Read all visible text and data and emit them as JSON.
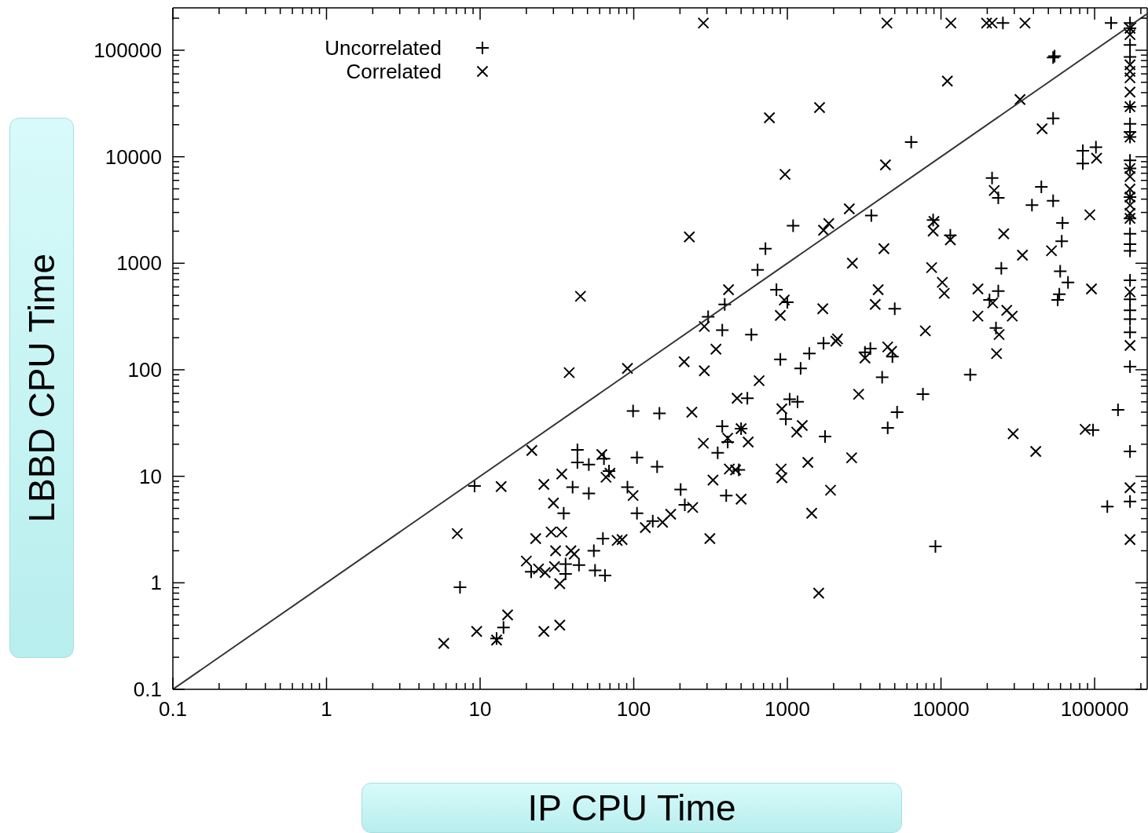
{
  "chart_data": {
    "type": "scatter",
    "xlabel": "IP CPU Time",
    "ylabel": "LBBD CPU Time",
    "log": "xy",
    "legend": "top left",
    "xlim": [
      0.1,
      220000
    ],
    "ylim": [
      0.1,
      250000
    ],
    "xticks": [
      0.1,
      {
        "value": 0.2,
        "label": null
      },
      {
        "value": 0.3,
        "label": null
      },
      {
        "value": 0.4,
        "label": null
      },
      {
        "value": 0.5,
        "label": null
      },
      {
        "value": 0.6,
        "label": null
      },
      {
        "value": 0.7,
        "label": null
      },
      {
        "value": 0.8,
        "label": null
      },
      {
        "value": 0.9,
        "label": null
      },
      1,
      {
        "value": 2,
        "label": null
      },
      {
        "value": 3,
        "label": null
      },
      {
        "value": 4,
        "label": null
      },
      {
        "value": 5,
        "label": null
      },
      {
        "value": 6,
        "label": null
      },
      {
        "value": 7,
        "label": null
      },
      {
        "value": 8,
        "label": null
      },
      {
        "value": 9,
        "label": null
      },
      10,
      {
        "value": 20,
        "label": null
      },
      {
        "value": 30,
        "label": null
      },
      {
        "value": 40,
        "label": null
      },
      {
        "value": 50,
        "label": null
      },
      {
        "value": 60,
        "label": null
      },
      {
        "value": 70,
        "label": null
      },
      {
        "value": 80,
        "label": null
      },
      {
        "value": 90,
        "label": null
      },
      100,
      {
        "value": 200,
        "label": null
      },
      {
        "value": 300,
        "label": null
      },
      {
        "value": 400,
        "label": null
      },
      {
        "value": 500,
        "label": null
      },
      {
        "value": 600,
        "label": null
      },
      {
        "value": 700,
        "label": null
      },
      {
        "value": 800,
        "label": null
      },
      {
        "value": 900,
        "label": null
      },
      1000,
      {
        "value": 2000,
        "label": null
      },
      {
        "value": 3000,
        "label": null
      },
      {
        "value": 4000,
        "label": null
      },
      {
        "value": 5000,
        "label": null
      },
      {
        "value": 6000,
        "label": null
      },
      {
        "value": 7000,
        "label": null
      },
      {
        "value": 8000,
        "label": null
      },
      {
        "value": 9000,
        "label": null
      },
      10000,
      {
        "value": 20000,
        "label": null
      },
      {
        "value": 30000,
        "label": null
      },
      {
        "value": 40000,
        "label": null
      },
      {
        "value": 50000,
        "label": null
      },
      {
        "value": 60000,
        "label": null
      },
      {
        "value": 70000,
        "label": null
      },
      {
        "value": 80000,
        "label": null
      },
      {
        "value": 90000,
        "label": null
      },
      100000,
      {
        "value": 200000,
        "label": null
      }
    ],
    "yticks": [
      0.1,
      {
        "value": 0.2,
        "label": null
      },
      {
        "value": 0.3,
        "label": null
      },
      {
        "value": 0.4,
        "label": null
      },
      {
        "value": 0.5,
        "label": null
      },
      {
        "value": 0.6,
        "label": null
      },
      {
        "value": 0.7,
        "label": null
      },
      {
        "value": 0.8,
        "label": null
      },
      {
        "value": 0.9,
        "label": null
      },
      1,
      {
        "value": 2,
        "label": null
      },
      {
        "value": 3,
        "label": null
      },
      {
        "value": 4,
        "label": null
      },
      {
        "value": 5,
        "label": null
      },
      {
        "value": 6,
        "label": null
      },
      {
        "value": 7,
        "label": null
      },
      {
        "value": 8,
        "label": null
      },
      {
        "value": 9,
        "label": null
      },
      10,
      {
        "value": 20,
        "label": null
      },
      {
        "value": 30,
        "label": null
      },
      {
        "value": 40,
        "label": null
      },
      {
        "value": 50,
        "label": null
      },
      {
        "value": 60,
        "label": null
      },
      {
        "value": 70,
        "label": null
      },
      {
        "value": 80,
        "label": null
      },
      {
        "value": 90,
        "label": null
      },
      100,
      {
        "value": 200,
        "label": null
      },
      {
        "value": 300,
        "label": null
      },
      {
        "value": 400,
        "label": null
      },
      {
        "value": 500,
        "label": null
      },
      {
        "value": 600,
        "label": null
      },
      {
        "value": 700,
        "label": null
      },
      {
        "value": 800,
        "label": null
      },
      {
        "value": 900,
        "label": null
      },
      1000,
      {
        "value": 2000,
        "label": null
      },
      {
        "value": 3000,
        "label": null
      },
      {
        "value": 4000,
        "label": null
      },
      {
        "value": 5000,
        "label": null
      },
      {
        "value": 6000,
        "label": null
      },
      {
        "value": 7000,
        "label": null
      },
      {
        "value": 8000,
        "label": null
      },
      {
        "value": 9000,
        "label": null
      },
      10000,
      {
        "value": 20000,
        "label": null
      },
      {
        "value": 30000,
        "label": null
      },
      {
        "value": 40000,
        "label": null
      },
      {
        "value": 50000,
        "label": null
      },
      {
        "value": 60000,
        "label": null
      },
      {
        "value": 70000,
        "label": null
      },
      {
        "value": 80000,
        "label": null
      },
      {
        "value": 90000,
        "label": null
      },
      100000,
      {
        "value": 200000,
        "label": null
      }
    ],
    "series": [
      {
        "name": "Uncorrelated",
        "marker": "plus",
        "color": "#000000",
        "x": [
          43,
          43,
          51,
          64,
          69,
          105,
          142,
          40,
          51,
          91,
          202,
          215,
          35,
          105,
          133,
          63,
          55,
          36,
          44,
          21.5,
          36,
          56,
          65,
          7.4,
          14.2,
          12.8,
          9.2,
          391,
          305,
          377,
          583,
          849,
          1000,
          1720,
          1390,
          900,
          1220,
          3470,
          3200,
          4830,
          5000,
          4140,
          7630,
          5180,
          4500,
          549,
          1035,
          1165,
          977,
          1760,
          377,
          409,
          352,
          483,
          400,
          9200,
          500,
          25300,
          54900,
          53700,
          53700,
          6400,
          83800,
          83800,
          21500,
          23600,
          45000,
          53700,
          39100,
          3520,
          1090,
          720,
          640,
          8890,
          11500,
          61800,
          61100,
          24700,
          59700,
          67100,
          23600,
          20700,
          58900,
          57500,
          22800,
          15500,
          142000,
          97700,
          121000,
          102000,
          128000,
          99,
          147,
          170000,
          170000,
          170000,
          170000,
          170000,
          170000,
          170000,
          170000,
          170000,
          170000,
          170000,
          170000,
          170000,
          170000,
          170000,
          170000,
          170000,
          170000,
          170000,
          170000,
          170000,
          170000,
          170000
        ],
        "values": [
          17.7,
          13.5,
          12.9,
          14.6,
          11.2,
          15,
          12.3,
          7.9,
          6.9,
          7.9,
          7.5,
          5.4,
          4.5,
          4.5,
          3.8,
          2.6,
          2,
          1.5,
          1.47,
          1.27,
          1.21,
          1.31,
          1.17,
          0.91,
          0.38,
          0.3,
          8.1,
          411,
          314,
          236,
          214,
          565,
          431,
          177,
          142,
          125,
          103,
          158,
          146,
          133,
          374,
          85,
          59,
          40,
          28.5,
          54,
          53,
          50,
          34.5,
          23.6,
          29.5,
          21,
          16.6,
          11.5,
          6.6,
          2.2,
          28,
          180000,
          88100,
          85300,
          22900,
          13700,
          11400,
          8660,
          6310,
          4110,
          5210,
          3860,
          3510,
          2810,
          2250,
          1370,
          867,
          2550,
          1830,
          2390,
          1610,
          895,
          840,
          662,
          547,
          452,
          513,
          452,
          247,
          90,
          42,
          27.2,
          5.2,
          12300,
          180000,
          41,
          39,
          180000,
          161000,
          112000,
          86700,
          29500,
          20400,
          17100,
          15300,
          9250,
          7760,
          4180,
          2640,
          1890,
          1510,
          1310,
          693,
          459,
          362,
          299,
          225,
          107,
          17.1,
          5.8
        ]
      },
      {
        "name": "Correlated",
        "marker": "cross",
        "color": "#000000",
        "x": [
          21.7,
          34,
          26,
          13.7,
          30,
          7.1,
          23,
          29,
          34,
          62,
          66,
          70,
          99,
          119,
          154,
          174,
          78,
          84,
          31,
          39,
          41,
          20,
          24,
          26.5,
          30.5,
          33,
          15.1,
          9.5,
          5.8,
          26,
          33,
          12.8,
          414,
          288,
          343,
          213,
          288,
          900,
          955,
          1700,
          3900,
          3730,
          7910,
          2120,
          2070,
          3200,
          4500,
          4770,
          655,
          471,
          239,
          2910,
          921,
          1250,
          1150,
          556,
          409,
          284,
          500,
          328,
          419,
          460,
          911,
          921,
          1360,
          2620,
          1910,
          500,
          242,
          1440,
          313,
          284,
          4450,
          11600,
          19800,
          21500,
          35200,
          764,
          1620,
          11000,
          32700,
          45500,
          966,
          4350,
          230,
          2530,
          1860,
          1720,
          9000,
          8890,
          11500,
          22200,
          25600,
          33900,
          52400,
          93100,
          4250,
          2650,
          8690,
          10200,
          103000,
          10500,
          17400,
          17400,
          21700,
          26800,
          29100,
          23900,
          23000,
          95400,
          29500,
          41400,
          86800,
          38,
          45,
          91,
          1600,
          170000,
          170000,
          170000,
          170000,
          170000,
          170000,
          170000,
          170000,
          170000,
          170000,
          170000,
          170000,
          170000,
          170000,
          170000,
          170000,
          170000,
          170000,
          170000
        ],
        "values": [
          17.5,
          10.5,
          8.4,
          8,
          5.6,
          2.9,
          2.6,
          3,
          3,
          16,
          9.8,
          10.7,
          6.6,
          3.3,
          3.7,
          4.4,
          2.5,
          2.55,
          2,
          2,
          1.86,
          1.6,
          1.35,
          1.25,
          1.42,
          0.98,
          0.5,
          0.35,
          0.27,
          0.35,
          0.4,
          0.29,
          565,
          255,
          156,
          119,
          98,
          324,
          452,
          374,
          565,
          411,
          232,
          195,
          186,
          129,
          164,
          149,
          79,
          54,
          40,
          59,
          43,
          30,
          26,
          21,
          22.8,
          20.4,
          28,
          9.2,
          11.7,
          11.5,
          11.7,
          9.7,
          13.5,
          14.9,
          7.4,
          6.1,
          5.1,
          4.5,
          2.6,
          180000,
          180000,
          180000,
          180000,
          180000,
          180000,
          23200,
          29000,
          51300,
          34500,
          18300,
          6830,
          8400,
          1770,
          3240,
          2360,
          2040,
          2470,
          2010,
          1660,
          4820,
          1890,
          1190,
          1310,
          2850,
          1370,
          1000,
          910,
          662,
          9690,
          522,
          574,
          319,
          424,
          362,
          319,
          214,
          142,
          574,
          25.1,
          17.1,
          27.6,
          94,
          490,
          103,
          0.8,
          161000,
          140000,
          73000,
          63400,
          55100,
          40500,
          29500,
          15300,
          7760,
          6520,
          4980,
          4180,
          3510,
          2950,
          2640,
          538,
          169,
          7.8,
          2.55
        ]
      },
      {
        "type": "line",
        "line_style": "solid",
        "color": "#333333",
        "x": [
          0.1,
          220000
        ],
        "values": [
          0.1,
          220000
        ]
      }
    ]
  }
}
